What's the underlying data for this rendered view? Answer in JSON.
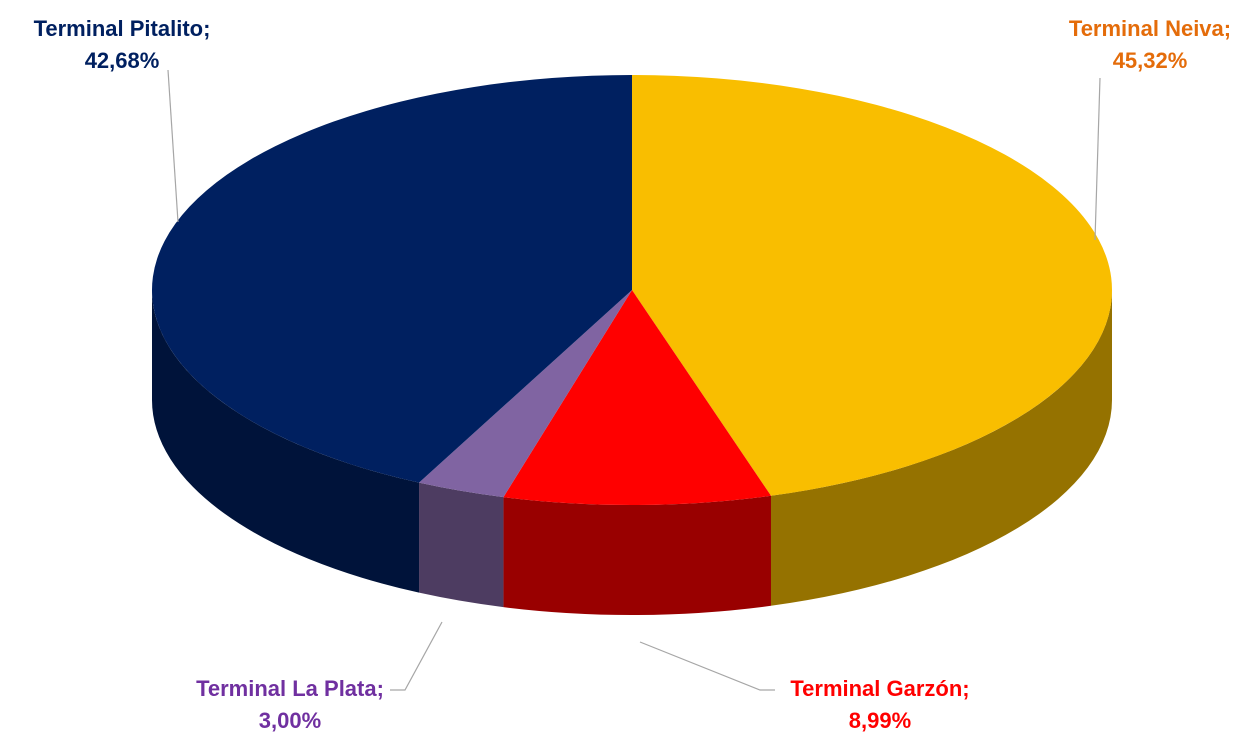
{
  "chart_data": {
    "type": "pie3d",
    "categories": [
      "Terminal Neiva;",
      "Terminal Garzón;",
      "Terminal La Plata;",
      "Terminal Pitalito;"
    ],
    "values": [
      45.32,
      8.99,
      3.0,
      42.68
    ],
    "value_labels": [
      "45,32%",
      "8,99%",
      "3,00%",
      "42,68%"
    ],
    "colors": [
      "#f9be00",
      "#ff0000",
      "#8064a2",
      "#002060"
    ],
    "label_colors": [
      "#e46c0a",
      "#ff0000",
      "#7030a0",
      "#002060"
    ]
  }
}
